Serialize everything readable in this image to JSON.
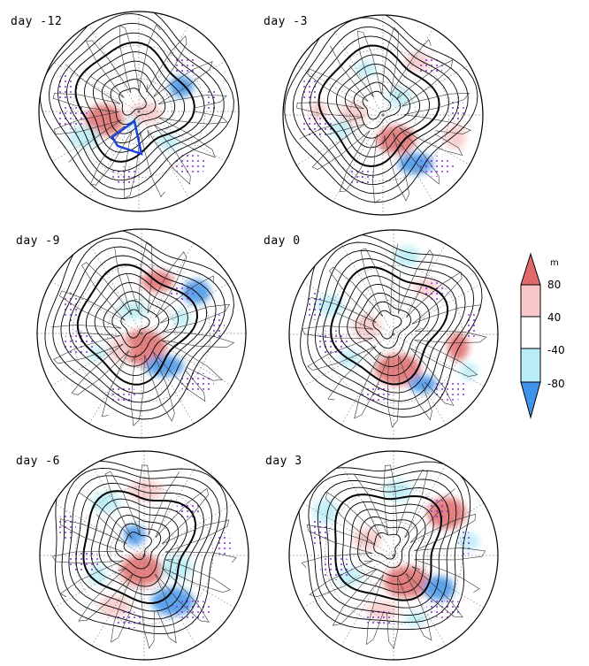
{
  "panels": [
    {
      "label": "day -12"
    },
    {
      "label": "day -3"
    },
    {
      "label": "day -9"
    },
    {
      "label": "day 0"
    },
    {
      "label": "day -6"
    },
    {
      "label": "day 3"
    }
  ],
  "colorbar": {
    "unit": "m",
    "ticks": [
      "80",
      "40",
      "-40",
      "-80"
    ],
    "colors": {
      "pos_strong": "#e06a6a",
      "pos_weak": "#f8c7c7",
      "neutral": "#ffffff",
      "neg_weak": "#b8ecf6",
      "neg_strong": "#3f93e8"
    }
  },
  "colors": {
    "contour": "#000000",
    "stipple": "#8a2be2",
    "box": "#1f3fe0",
    "coast": "#333333"
  }
}
